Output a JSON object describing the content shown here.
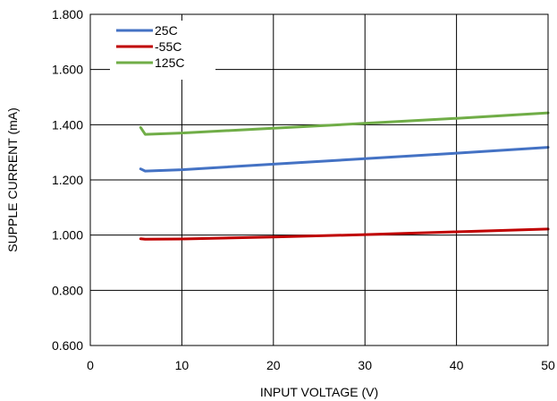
{
  "chart_data": {
    "type": "line",
    "title": "",
    "xlabel": "INPUT VOLTAGE (V)",
    "ylabel": "SUPPLE CURRENT (mA)",
    "xlim": [
      0,
      50
    ],
    "ylim": [
      0.6,
      1.8
    ],
    "x_ticks": [
      0,
      10,
      20,
      30,
      40,
      50
    ],
    "x_tick_labels": [
      "0",
      "10",
      "20",
      "30",
      "40",
      "50"
    ],
    "y_ticks": [
      0.6,
      0.8,
      1.0,
      1.2,
      1.4,
      1.6,
      1.8
    ],
    "y_tick_labels": [
      "0.600",
      "0.800",
      "1.000",
      "1.200",
      "1.400",
      "1.600",
      "1.800"
    ],
    "grid": true,
    "legend_position": "top-left",
    "series": [
      {
        "name": "25C",
        "color": "#4472C4",
        "x": [
          5.5,
          6,
          10,
          20,
          30,
          40,
          50
        ],
        "y": [
          1.24,
          1.232,
          1.237,
          1.257,
          1.277,
          1.297,
          1.318
        ]
      },
      {
        "name": "-55C",
        "color": "#C00000",
        "x": [
          5.5,
          6,
          10,
          20,
          30,
          40,
          50
        ],
        "y": [
          0.987,
          0.985,
          0.986,
          0.993,
          1.002,
          1.012,
          1.022
        ]
      },
      {
        "name": "125C",
        "color": "#70AD47",
        "x": [
          5.5,
          6,
          10,
          20,
          30,
          40,
          50
        ],
        "y": [
          1.39,
          1.365,
          1.37,
          1.387,
          1.405,
          1.423,
          1.443
        ]
      }
    ]
  }
}
